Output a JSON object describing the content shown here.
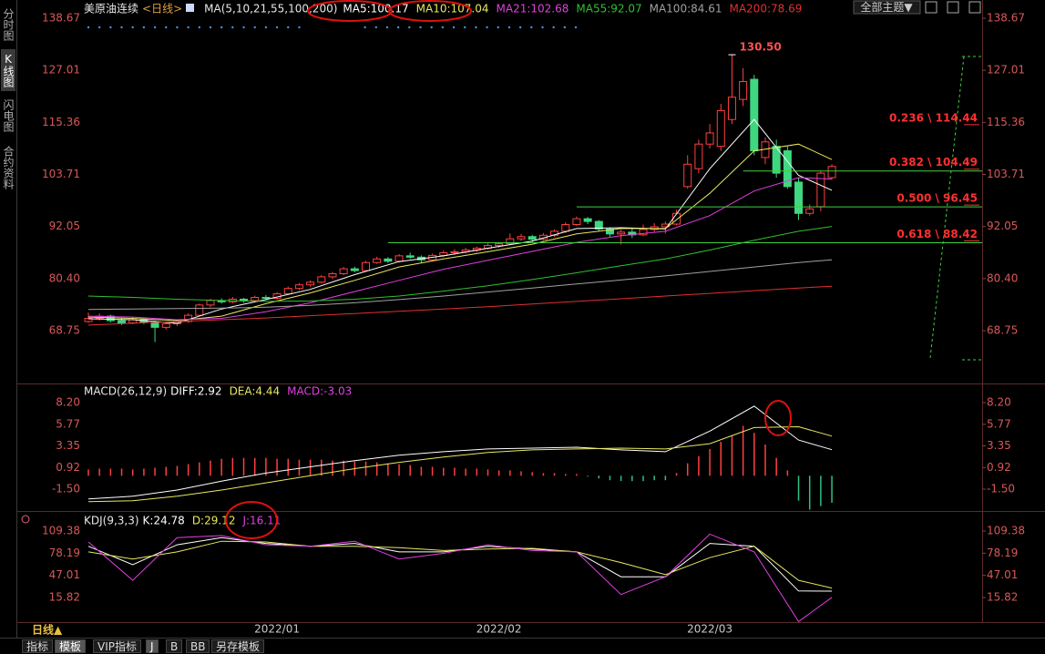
{
  "sidebar": [
    "分时图",
    "K线图",
    "闪电图",
    "合约资料"
  ],
  "theme_menu": "全部主题▼",
  "period_label": "日线▲",
  "tabs": [
    "指标",
    "模板",
    "VIP指标",
    "J",
    "B",
    "BB",
    "另存模板"
  ],
  "chart_data": [
    {
      "type": "candlestick",
      "title": "美原油连续",
      "subtitle": "<日线>",
      "indicator": "MA(5,10,21,55,100,200)",
      "categories": [
        null,
        null,
        null,
        null,
        null,
        null,
        null,
        null,
        null,
        null,
        null,
        null,
        null,
        null,
        null,
        null,
        null,
        "2022/01",
        null,
        null,
        null,
        null,
        null,
        null,
        null,
        null,
        null,
        null,
        null,
        null,
        null,
        null,
        null,
        null,
        null,
        null,
        null,
        "2022/02",
        null,
        null,
        null,
        null,
        null,
        null,
        null,
        null,
        null,
        null,
        null,
        null,
        null,
        null,
        null,
        null,
        null,
        null,
        "2022/03",
        null,
        null,
        null,
        null,
        null,
        null,
        null,
        null,
        null,
        null,
        null
      ],
      "open": [
        70.8,
        71.5,
        72.0,
        71.0,
        70.5,
        71.2,
        70.6,
        69.5,
        70.3,
        70.8,
        72.2,
        74.5,
        75.5,
        75.2,
        75.8,
        75.5,
        76.2,
        76.0,
        77.0,
        78.2,
        79.0,
        79.6,
        80.8,
        81.5,
        82.6,
        82.2,
        84.0,
        84.8,
        84.3,
        85.5,
        85.2,
        84.6,
        85.6,
        86.2,
        86.4,
        86.8,
        87.2,
        87.8,
        88.2,
        89.3,
        89.8,
        89.2,
        90.1,
        91.0,
        92.5,
        93.8,
        93.2,
        91.5,
        90.4,
        90.8,
        90.2,
        91.4,
        92.0,
        92.6,
        101,
        105,
        110.5,
        110,
        116,
        120.5,
        125,
        107.5,
        110,
        109,
        102,
        95,
        96.5,
        103
      ],
      "high": [
        72.8,
        72.6,
        72.3,
        71.6,
        71.8,
        71.5,
        71.0,
        70.8,
        71.3,
        72.6,
        74.8,
        75.9,
        76.0,
        76.3,
        76.1,
        76.6,
        76.7,
        77.4,
        78.6,
        79.4,
        80.0,
        81.2,
        81.9,
        83.0,
        83.1,
        84.4,
        85.3,
        85.2,
        85.9,
        86.2,
        85.6,
        86.0,
        86.7,
        87.0,
        87.3,
        87.6,
        88.3,
        88.6,
        90.5,
        90.4,
        90.2,
        90.6,
        91.4,
        93.0,
        94.3,
        94.2,
        93.5,
        91.9,
        91.4,
        91.6,
        92.5,
        92.8,
        93.2,
        95.8,
        108,
        111.5,
        115,
        119.5,
        130.5,
        127.5,
        126,
        112,
        111.5,
        110,
        103,
        97,
        104.5,
        106
      ],
      "low": [
        70.5,
        71.0,
        70.6,
        70.0,
        70.2,
        70.2,
        66.2,
        69.0,
        69.8,
        70.5,
        72.0,
        74.0,
        74.8,
        74.9,
        75.0,
        75.2,
        75.6,
        75.7,
        76.8,
        77.8,
        78.6,
        79.3,
        80.3,
        81.2,
        81.8,
        82.0,
        83.7,
        83.9,
        84.0,
        84.8,
        84.0,
        84.3,
        85.2,
        85.7,
        86.0,
        86.3,
        86.9,
        87.3,
        87.9,
        88.8,
        88.6,
        88.9,
        89.7,
        90.6,
        92.2,
        92.6,
        91.0,
        89.8,
        88.0,
        89.5,
        89.9,
        90.9,
        90.5,
        92.3,
        100.5,
        104,
        109.5,
        109,
        115,
        119,
        108,
        106,
        103,
        100.5,
        93.5,
        94.5,
        95.5,
        102.5
      ],
      "close": [
        71.5,
        72.0,
        71.0,
        70.5,
        71.2,
        70.6,
        69.5,
        70.3,
        70.8,
        72.2,
        74.5,
        75.5,
        75.2,
        75.8,
        75.5,
        76.2,
        76.0,
        77.0,
        78.2,
        79.0,
        79.6,
        80.8,
        81.5,
        82.6,
        82.2,
        84.0,
        84.8,
        84.3,
        85.5,
        85.2,
        84.6,
        85.6,
        86.2,
        86.4,
        86.8,
        87.2,
        87.8,
        88.2,
        89.3,
        89.8,
        89.2,
        90.1,
        91.0,
        92.5,
        93.8,
        93.2,
        91.5,
        90.4,
        90.8,
        90.2,
        91.4,
        92.0,
        92.6,
        95.0,
        106,
        110.5,
        113,
        118,
        121,
        124.5,
        109,
        111,
        104,
        101,
        95,
        96,
        104,
        105.5
      ],
      "up_color": "#ff4040",
      "down_color": "#3fd880",
      "lines": [
        {
          "legend": "MA5:100.17",
          "color": "#ffffff",
          "x": [
            0,
            4,
            8,
            12,
            16,
            20,
            24,
            28,
            32,
            36,
            40,
            44,
            48,
            52,
            56,
            60,
            64,
            67
          ],
          "values": [
            71.4,
            71.2,
            70.4,
            73.6,
            75.7,
            78.0,
            81.3,
            84.2,
            85.5,
            87.2,
            88.8,
            91.6,
            91.8,
            91.5,
            105,
            116,
            103.5,
            100.17
          ]
        },
        {
          "legend": "MA10:107.04",
          "color": "#e8e860",
          "x": [
            0,
            4,
            8,
            12,
            16,
            20,
            24,
            28,
            32,
            36,
            40,
            44,
            48,
            52,
            56,
            60,
            64,
            67
          ],
          "values": [
            71.8,
            71.5,
            71.0,
            72.0,
            74.8,
            77.2,
            80.0,
            83.0,
            84.8,
            86.4,
            88.1,
            90.4,
            91.6,
            91.6,
            99.5,
            109,
            110.5,
            107.04
          ]
        },
        {
          "legend": "MA21:102.68",
          "color": "#e040e0",
          "x": [
            0,
            4,
            8,
            12,
            16,
            20,
            24,
            28,
            32,
            36,
            40,
            44,
            48,
            52,
            56,
            60,
            64,
            67
          ],
          "values": [
            72,
            71.8,
            71.2,
            71.5,
            73,
            75,
            77.5,
            80,
            82.5,
            84.5,
            86.5,
            88.5,
            90,
            91,
            94.5,
            100,
            103,
            102.68
          ]
        },
        {
          "legend": "MA55:92.07",
          "color": "#30c030",
          "x": [
            0,
            4,
            8,
            12,
            16,
            20,
            24,
            28,
            32,
            36,
            40,
            44,
            48,
            52,
            56,
            60,
            64,
            67
          ],
          "values": [
            76.5,
            76.2,
            75.8,
            75.5,
            75.3,
            75.4,
            75.8,
            76.5,
            77.6,
            78.8,
            80.2,
            81.7,
            83.3,
            84.8,
            86.8,
            89,
            91,
            92.07
          ]
        },
        {
          "legend": "MA100:84.61",
          "color": "#a0a0a0",
          "x": [
            0,
            4,
            8,
            12,
            16,
            20,
            24,
            28,
            32,
            36,
            40,
            44,
            48,
            52,
            56,
            60,
            64,
            67
          ],
          "values": [
            73.5,
            73.6,
            73.7,
            73.8,
            74.0,
            74.4,
            75.0,
            75.7,
            76.5,
            77.4,
            78.3,
            79.2,
            80.1,
            81,
            82,
            83,
            84,
            84.61
          ]
        },
        {
          "legend": "MA200:78.69",
          "color": "#e03030",
          "x": [
            0,
            4,
            8,
            12,
            16,
            20,
            24,
            28,
            32,
            36,
            40,
            44,
            48,
            52,
            56,
            60,
            64,
            67
          ],
          "values": [
            70,
            70.4,
            70.8,
            71.2,
            71.6,
            72.1,
            72.6,
            73.1,
            73.6,
            74.1,
            74.7,
            75.3,
            75.9,
            76.5,
            77.1,
            77.7,
            78.3,
            78.69
          ]
        }
      ],
      "annotations": [
        {
          "text": "130.50",
          "x": 58,
          "y": 130.5
        }
      ],
      "fib_levels": [
        {
          "label": "0.236 \\ 114.44",
          "value": 114.44,
          "from": null
        },
        {
          "label": "0.382 \\ 104.49",
          "value": 104.49,
          "from": 59
        },
        {
          "label": "0.500 \\ 96.45",
          "value": 96.45,
          "from": 44
        },
        {
          "label": "0.618 \\ 88.42",
          "value": 88.42,
          "from": 27
        }
      ],
      "fib_color": "#40d040",
      "fib_label_color": "#ff3030",
      "ylim": [
        57.14,
        138.67
      ],
      "yticks": [
        138.67,
        127.01,
        115.36,
        103.71,
        92.05,
        {
          "value": 80.4,
          "label": "80.40"
        },
        68.75
      ]
    },
    {
      "type": "macd",
      "title": "MACD(26,12,9)",
      "histogram": {
        "legend": "MACD:-3.03",
        "legend_color": "#e040e0",
        "up_color": "#ff4040",
        "down_color": "#30c080",
        "values": [
          0.7,
          0.8,
          0.8,
          0.8,
          0.7,
          0.8,
          0.9,
          1.0,
          1.1,
          1.3,
          1.5,
          1.7,
          1.9,
          2.0,
          2.0,
          2.0,
          2.0,
          1.9,
          1.9,
          1.8,
          1.8,
          1.8,
          1.7,
          1.7,
          1.6,
          1.6,
          1.5,
          1.4,
          1.3,
          1.2,
          1.0,
          1.0,
          0.9,
          0.9,
          0.8,
          0.8,
          0.7,
          0.6,
          0.6,
          0.5,
          0.4,
          0.3,
          0.3,
          0.2,
          0.2,
          -0.1,
          -0.3,
          -0.5,
          -0.6,
          -0.6,
          -0.6,
          -0.5,
          -0.5,
          0.3,
          1.4,
          2.2,
          3.0,
          3.8,
          4.5,
          5.6,
          4.8,
          3.5,
          2.0,
          0.6,
          -2.8,
          -3.8,
          -3.4,
          -3.03
        ]
      },
      "lines": [
        {
          "legend": "DIFF:2.92",
          "color": "#ffffff",
          "x": [
            0,
            4,
            8,
            12,
            16,
            20,
            24,
            28,
            32,
            36,
            40,
            44,
            48,
            52,
            56,
            60,
            64,
            67
          ],
          "values": [
            -2.6,
            -2.3,
            -1.6,
            -0.6,
            0.3,
            1.0,
            1.7,
            2.3,
            2.7,
            3.0,
            3.1,
            3.2,
            2.9,
            2.7,
            5.0,
            7.8,
            4.0,
            2.92
          ]
        },
        {
          "legend": "DEA:4.44",
          "color": "#e8e860",
          "x": [
            0,
            4,
            8,
            12,
            16,
            20,
            24,
            28,
            32,
            36,
            40,
            44,
            48,
            52,
            56,
            60,
            64,
            67
          ],
          "values": [
            -2.9,
            -2.8,
            -2.3,
            -1.6,
            -0.8,
            0.0,
            0.8,
            1.5,
            2.1,
            2.6,
            2.9,
            3.0,
            3.1,
            3.0,
            3.6,
            5.4,
            5.5,
            4.44
          ]
        }
      ],
      "ylim": [
        -3.85,
        10.04
      ],
      "yticks": [
        {
          "value": 8.2,
          "label": "8.20"
        },
        5.77,
        3.35,
        0.92,
        {
          "value": -1.5,
          "label": "-1.50"
        }
      ]
    },
    {
      "type": "kdj",
      "title": "KDJ(9,3,3)",
      "lines": [
        {
          "legend": "K:24.78",
          "color": "#ffffff",
          "x": [
            0,
            4,
            8,
            12,
            16,
            20,
            24,
            28,
            32,
            36,
            40,
            44,
            48,
            52,
            56,
            60,
            64,
            67
          ],
          "values": [
            88,
            62,
            90,
            100,
            92,
            88,
            92,
            80,
            80,
            88,
            84,
            80,
            45,
            45,
            92,
            88,
            25,
            24.78
          ]
        },
        {
          "legend": "D:29.12",
          "color": "#e8e860",
          "x": [
            0,
            4,
            8,
            12,
            16,
            20,
            24,
            28,
            32,
            36,
            40,
            44,
            48,
            52,
            56,
            60,
            64,
            67
          ],
          "values": [
            80,
            70,
            80,
            95,
            94,
            88,
            88,
            86,
            82,
            84,
            85,
            80,
            65,
            48,
            72,
            88,
            40,
            29.12
          ]
        },
        {
          "legend": "J:16.11",
          "color": "#e040e0",
          "x": [
            0,
            4,
            8,
            12,
            16,
            20,
            24,
            28,
            32,
            36,
            40,
            44,
            48,
            52,
            56,
            60,
            64,
            67
          ],
          "values": [
            94,
            40,
            100,
            103,
            90,
            88,
            95,
            70,
            78,
            90,
            82,
            80,
            20,
            45,
            105,
            80,
            -18,
            16.11
          ]
        }
      ],
      "ylim": [
        -18.8,
        135
      ],
      "yticks": [
        109.38,
        78.19,
        47.01,
        15.82
      ]
    }
  ]
}
